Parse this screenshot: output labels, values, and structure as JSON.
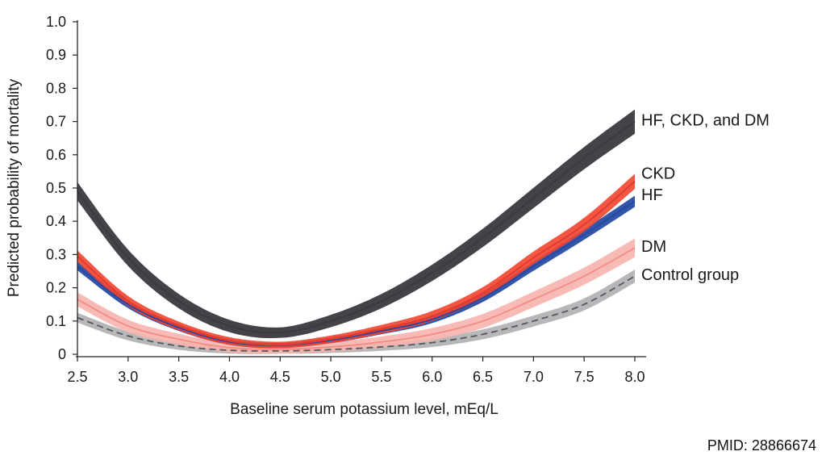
{
  "chart_data": {
    "type": "line",
    "title": "",
    "xlabel": "Baseline serum potassium level, mEq/L",
    "ylabel": "Predicted probability of mortality",
    "xlim": [
      2.5,
      8.0
    ],
    "ylim": [
      0,
      1.0
    ],
    "x_ticks": [
      "2.5",
      "3.0",
      "3.5",
      "4.0",
      "4.5",
      "5.0",
      "5.5",
      "6.0",
      "6.5",
      "7.0",
      "7.5",
      "8.0"
    ],
    "y_ticks": [
      "0",
      "0.1",
      "0.2",
      "0.3",
      "0.4",
      "0.5",
      "0.6",
      "0.7",
      "0.8",
      "0.9",
      "1.0"
    ],
    "grid": false,
    "legend": "direct labels at right end of lines",
    "x": [
      2.5,
      3.0,
      3.5,
      4.0,
      4.5,
      5.0,
      5.5,
      6.0,
      6.5,
      7.0,
      7.5,
      8.0
    ],
    "series": [
      {
        "name": "HF, CKD, and DM",
        "color": "#3a3b40",
        "band_color": "#2f3035",
        "style": "solid",
        "values": [
          0.49,
          0.29,
          0.16,
          0.085,
          0.065,
          0.1,
          0.16,
          0.245,
          0.35,
          0.47,
          0.59,
          0.7
        ],
        "band": 0.026
      },
      {
        "name": "CKD",
        "color": "#e03a2e",
        "band_color": "#f2442f",
        "style": "solid",
        "values": [
          0.295,
          0.16,
          0.085,
          0.04,
          0.028,
          0.045,
          0.075,
          0.115,
          0.185,
          0.29,
          0.39,
          0.52
        ],
        "band": 0.016
      },
      {
        "name": "HF",
        "color": "#2747a0",
        "band_color": "#1e44a0",
        "style": "solid",
        "values": [
          0.265,
          0.15,
          0.08,
          0.037,
          0.027,
          0.042,
          0.07,
          0.105,
          0.17,
          0.265,
          0.36,
          0.46
        ],
        "band": 0.012
      },
      {
        "name": "DM",
        "color": "#f28c84",
        "band_color": "#f7b3ac",
        "style": "solid",
        "values": [
          0.165,
          0.085,
          0.045,
          0.02,
          0.015,
          0.022,
          0.037,
          0.06,
          0.1,
          0.165,
          0.235,
          0.32
        ],
        "band": 0.02
      },
      {
        "name": "Control group",
        "color": "#55575c",
        "band_color": "#a9aaad",
        "style": "dashed",
        "values": [
          0.11,
          0.055,
          0.025,
          0.012,
          0.01,
          0.014,
          0.022,
          0.035,
          0.06,
          0.1,
          0.15,
          0.235
        ],
        "band": 0.014
      }
    ],
    "label_y": [
      0.705,
      0.545,
      0.48,
      0.325,
      0.24
    ]
  },
  "footer": {
    "note": "PMID: 28866674"
  }
}
